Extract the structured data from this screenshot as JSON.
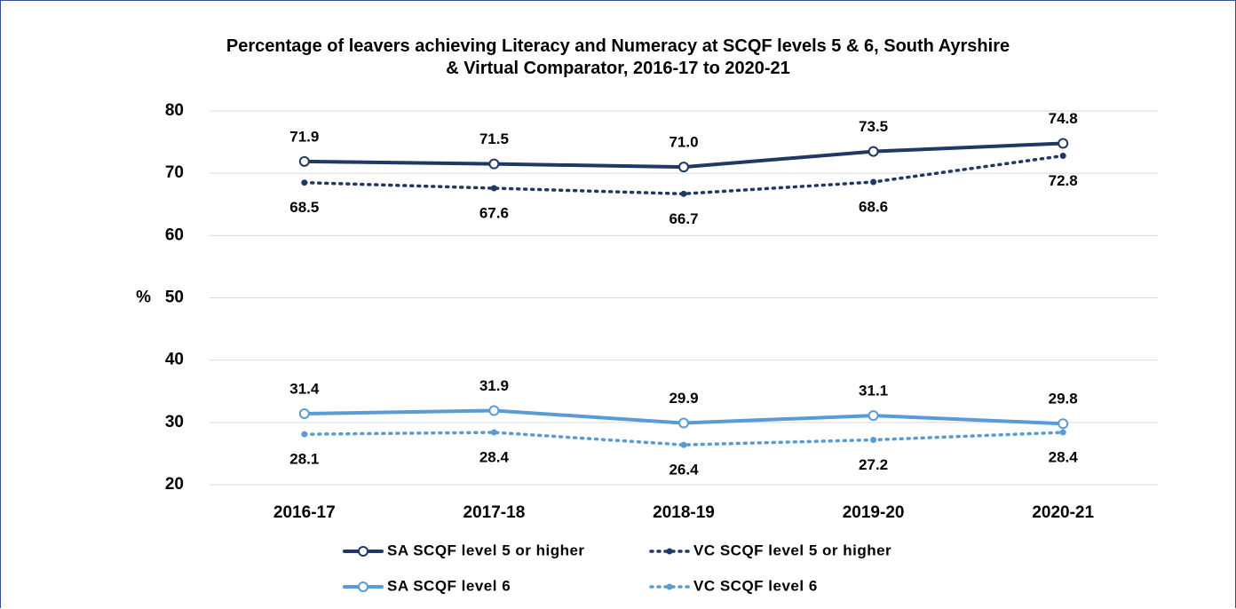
{
  "chart_data": {
    "type": "line",
    "title": "Percentage of leavers achieving Literacy and Numeracy at SCQF levels 5 & 6, South Ayrshire & Virtual Comparator, 2016-17 to 2020-21",
    "y_label": "%",
    "categories": [
      "2016-17",
      "2017-18",
      "2018-19",
      "2019-20",
      "2020-21"
    ],
    "series": [
      {
        "name": "SA SCQF level 5 or higher",
        "color": "#1f3864",
        "style": "solid",
        "label_position": "above",
        "values": [
          71.9,
          71.5,
          71.0,
          73.5,
          74.8
        ],
        "value_labels": [
          "71.9",
          "71.5",
          "71.0",
          "73.5",
          "74.8"
        ]
      },
      {
        "name": "VC SCQF level 5 or higher",
        "color": "#1f3864",
        "style": "dotted",
        "label_position": "below",
        "values": [
          68.5,
          67.6,
          66.7,
          68.6,
          72.8
        ],
        "value_labels": [
          "68.5",
          "67.6",
          "66.7",
          "68.6",
          "72.8"
        ]
      },
      {
        "name": "SA SCQF level 6",
        "color": "#5b9bd5",
        "style": "solid",
        "label_position": "above",
        "values": [
          31.4,
          31.9,
          29.9,
          31.1,
          29.8
        ],
        "value_labels": [
          "31.4",
          "31.9",
          "29.9",
          "31.1",
          "29.8"
        ]
      },
      {
        "name": "VC SCQF level 6",
        "color": "#5b9bd5",
        "style": "dotted",
        "label_position": "below",
        "values": [
          28.1,
          28.4,
          26.4,
          27.2,
          28.4
        ],
        "value_labels": [
          "28.1",
          "28.4",
          "26.4",
          "27.2",
          "28.4"
        ]
      }
    ],
    "ylim": [
      20,
      80
    ],
    "yticks": [
      20,
      30,
      40,
      50,
      60,
      70,
      80
    ],
    "grid": true,
    "legend": "bottom"
  }
}
